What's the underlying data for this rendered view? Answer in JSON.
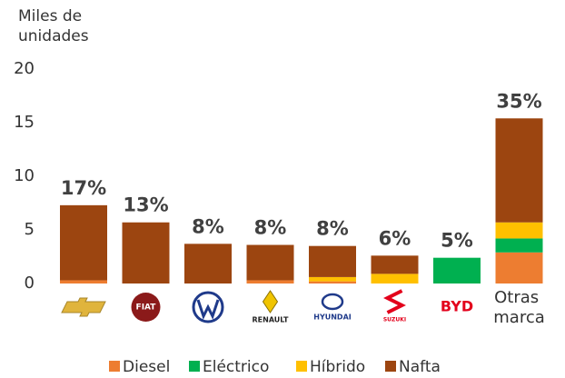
{
  "chart_data": {
    "type": "stacked_bar",
    "y_label": "Miles de unidades",
    "categories": [
      null,
      "FIAT",
      null,
      "RENAULT",
      "HYUNDAI",
      "SUZUKI",
      "BYD",
      "Otras marca"
    ],
    "series": [
      {
        "name": "Diesel",
        "color": "#ED7D31",
        "values": [
          0.3,
          0,
          0,
          0.3,
          0.2,
          0,
          0,
          2.9
        ]
      },
      {
        "name": "Eléctrico",
        "color": "#00B050",
        "values": [
          0,
          0,
          0,
          0,
          0,
          0,
          2.4,
          1.3
        ]
      },
      {
        "name": "Híbrido",
        "color": "#FFC000",
        "values": [
          0,
          0,
          0,
          0,
          0.4,
          0.9,
          0,
          1.5
        ]
      },
      {
        "name": "Nafta",
        "color": "#9C4510",
        "values": [
          7.0,
          5.7,
          3.7,
          3.3,
          2.9,
          1.7,
          0,
          9.7
        ]
      }
    ],
    "share_labels": [
      "17%",
      "13%",
      "8%",
      "8%",
      "8%",
      "6%",
      "5%",
      "35%"
    ],
    "ylim": [
      0,
      20
    ],
    "yticks": [
      0,
      5,
      10,
      15,
      20
    ],
    "legend": "bottom"
  }
}
